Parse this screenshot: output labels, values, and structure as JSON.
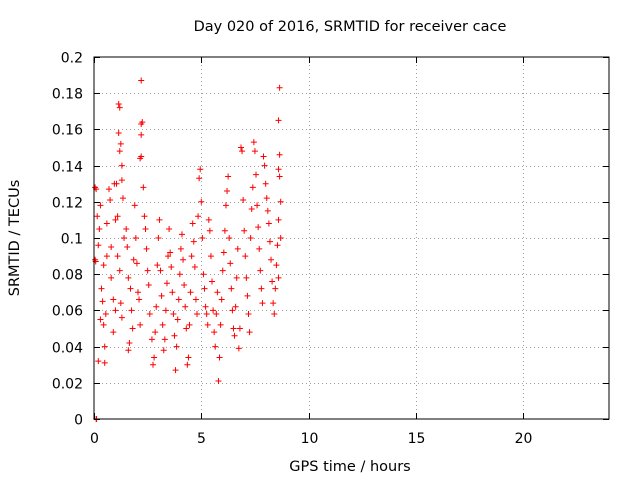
{
  "chart_data": {
    "type": "scatter",
    "title": "Day 020 of 2016, SRMTID for receiver cace",
    "xlabel": "GPS time / hours",
    "ylabel": "SRMTID / TECUs",
    "xlim": [
      0,
      24
    ],
    "ylim": [
      0,
      0.2
    ],
    "xticks": [
      0,
      5,
      10,
      15,
      20
    ],
    "xtick_labels": [
      "0",
      "5",
      "10",
      "15",
      "20"
    ],
    "yticks": [
      0,
      0.02,
      0.04,
      0.06,
      0.08,
      0.1,
      0.12,
      0.14,
      0.16,
      0.18,
      0.2
    ],
    "ytick_labels": [
      "0",
      "0.02",
      "0.04",
      "0.06",
      "0.08",
      "0.1",
      "0.12",
      "0.14",
      "0.16",
      "0.18",
      "0.2"
    ],
    "grid": true,
    "marker": "+",
    "series": [
      {
        "name": "SRMTID",
        "color": "#ff0000",
        "points": [
          [
            0.05,
            0.128
          ],
          [
            0.1,
            0.127
          ],
          [
            0.1,
            0.0
          ],
          [
            0.12,
            0.0
          ],
          [
            0.08,
            0.087
          ],
          [
            0.05,
            0.088
          ],
          [
            0.15,
            0.112
          ],
          [
            0.2,
            0.096
          ],
          [
            0.25,
            0.105
          ],
          [
            0.3,
            0.118
          ],
          [
            0.35,
            0.072
          ],
          [
            0.3,
            0.055
          ],
          [
            0.2,
            0.032
          ],
          [
            0.4,
            0.065
          ],
          [
            0.45,
            0.052
          ],
          [
            0.5,
            0.04
          ],
          [
            0.5,
            0.031
          ],
          [
            0.55,
            0.058
          ],
          [
            0.45,
            0.085
          ],
          [
            0.6,
            0.09
          ],
          [
            0.6,
            0.108
          ],
          [
            0.7,
            0.127
          ],
          [
            0.75,
            0.121
          ],
          [
            0.8,
            0.095
          ],
          [
            0.8,
            0.078
          ],
          [
            0.9,
            0.066
          ],
          [
            0.95,
            0.13
          ],
          [
            1.0,
            0.11
          ],
          [
            1.05,
            0.13
          ],
          [
            1.1,
            0.112
          ],
          [
            1.15,
            0.174
          ],
          [
            1.2,
            0.172
          ],
          [
            1.15,
            0.158
          ],
          [
            1.25,
            0.152
          ],
          [
            1.2,
            0.148
          ],
          [
            1.3,
            0.14
          ],
          [
            1.3,
            0.132
          ],
          [
            1.35,
            0.122
          ],
          [
            1.1,
            0.09
          ],
          [
            1.2,
            0.082
          ],
          [
            1.25,
            0.064
          ],
          [
            1.3,
            0.056
          ],
          [
            1.0,
            0.06
          ],
          [
            0.9,
            0.048
          ],
          [
            1.4,
            0.1
          ],
          [
            1.5,
            0.105
          ],
          [
            1.55,
            0.095
          ],
          [
            1.6,
            0.078
          ],
          [
            1.7,
            0.072
          ],
          [
            1.75,
            0.06
          ],
          [
            1.8,
            0.05
          ],
          [
            1.6,
            0.038
          ],
          [
            1.65,
            0.042
          ],
          [
            1.85,
            0.088
          ],
          [
            1.9,
            0.118
          ],
          [
            1.95,
            0.1
          ],
          [
            2.0,
            0.086
          ],
          [
            2.05,
            0.07
          ],
          [
            2.1,
            0.066
          ],
          [
            2.15,
            0.052
          ],
          [
            2.15,
            0.144
          ],
          [
            2.2,
            0.145
          ],
          [
            2.2,
            0.163
          ],
          [
            2.25,
            0.164
          ],
          [
            2.2,
            0.157
          ],
          [
            2.2,
            0.187
          ],
          [
            2.3,
            0.128
          ],
          [
            2.35,
            0.112
          ],
          [
            2.4,
            0.105
          ],
          [
            2.45,
            0.094
          ],
          [
            2.5,
            0.082
          ],
          [
            2.55,
            0.074
          ],
          [
            2.6,
            0.058
          ],
          [
            2.7,
            0.044
          ],
          [
            2.75,
            0.03
          ],
          [
            2.8,
            0.034
          ],
          [
            2.85,
            0.048
          ],
          [
            2.9,
            0.062
          ],
          [
            2.95,
            0.085
          ],
          [
            3.0,
            0.1
          ],
          [
            3.05,
            0.11
          ],
          [
            3.1,
            0.082
          ],
          [
            3.15,
            0.068
          ],
          [
            3.2,
            0.052
          ],
          [
            3.25,
            0.038
          ],
          [
            3.3,
            0.044
          ],
          [
            3.35,
            0.06
          ],
          [
            3.4,
            0.075
          ],
          [
            3.45,
            0.09
          ],
          [
            3.5,
            0.105
          ],
          [
            3.55,
            0.092
          ],
          [
            3.6,
            0.084
          ],
          [
            3.65,
            0.07
          ],
          [
            3.7,
            0.058
          ],
          [
            3.75,
            0.046
          ],
          [
            3.8,
            0.027
          ],
          [
            3.85,
            0.04
          ],
          [
            3.9,
            0.055
          ],
          [
            3.95,
            0.066
          ],
          [
            4.0,
            0.08
          ],
          [
            4.05,
            0.094
          ],
          [
            4.1,
            0.102
          ],
          [
            4.15,
            0.088
          ],
          [
            4.2,
            0.074
          ],
          [
            4.25,
            0.062
          ],
          [
            4.3,
            0.05
          ],
          [
            4.35,
            0.03
          ],
          [
            4.4,
            0.034
          ],
          [
            4.45,
            0.052
          ],
          [
            4.5,
            0.07
          ],
          [
            4.55,
            0.09
          ],
          [
            4.6,
            0.108
          ],
          [
            4.65,
            0.098
          ],
          [
            4.7,
            0.084
          ],
          [
            4.75,
            0.066
          ],
          [
            4.8,
            0.058
          ],
          [
            4.85,
            0.112
          ],
          [
            4.9,
            0.133
          ],
          [
            4.95,
            0.138
          ],
          [
            5.0,
            0.12
          ],
          [
            5.05,
            0.1
          ],
          [
            5.1,
            0.08
          ],
          [
            5.15,
            0.072
          ],
          [
            5.2,
            0.062
          ],
          [
            5.25,
            0.058
          ],
          [
            5.3,
            0.052
          ],
          [
            5.35,
            0.11
          ],
          [
            5.4,
            0.104
          ],
          [
            5.45,
            0.09
          ],
          [
            5.5,
            0.076
          ],
          [
            5.55,
            0.06
          ],
          [
            5.6,
            0.048
          ],
          [
            5.65,
            0.04
          ],
          [
            5.7,
            0.058
          ],
          [
            5.75,
            0.07
          ],
          [
            5.8,
            0.021
          ],
          [
            5.85,
            0.034
          ],
          [
            5.9,
            0.052
          ],
          [
            5.95,
            0.066
          ],
          [
            6.0,
            0.082
          ],
          [
            6.05,
            0.092
          ],
          [
            6.1,
            0.104
          ],
          [
            6.15,
            0.118
          ],
          [
            6.2,
            0.126
          ],
          [
            6.25,
            0.134
          ],
          [
            6.3,
            0.1
          ],
          [
            6.35,
            0.086
          ],
          [
            6.4,
            0.072
          ],
          [
            6.45,
            0.06
          ],
          [
            6.5,
            0.05
          ],
          [
            6.55,
            0.046
          ],
          [
            6.6,
            0.062
          ],
          [
            6.65,
            0.078
          ],
          [
            6.7,
            0.094
          ],
          [
            6.75,
            0.039
          ],
          [
            6.8,
            0.05
          ],
          [
            6.85,
            0.15
          ],
          [
            6.9,
            0.148
          ],
          [
            6.95,
            0.121
          ],
          [
            7.0,
            0.104
          ],
          [
            7.05,
            0.09
          ],
          [
            7.1,
            0.078
          ],
          [
            7.15,
            0.068
          ],
          [
            7.2,
            0.058
          ],
          [
            7.25,
            0.048
          ],
          [
            7.3,
            0.1
          ],
          [
            7.35,
            0.116
          ],
          [
            7.4,
            0.128
          ],
          [
            7.45,
            0.153
          ],
          [
            7.5,
            0.148
          ],
          [
            7.55,
            0.135
          ],
          [
            7.6,
            0.118
          ],
          [
            7.65,
            0.106
          ],
          [
            7.7,
            0.094
          ],
          [
            7.75,
            0.082
          ],
          [
            7.8,
            0.072
          ],
          [
            7.85,
            0.064
          ],
          [
            7.9,
            0.145
          ],
          [
            7.95,
            0.14
          ],
          [
            8.0,
            0.13
          ],
          [
            8.05,
            0.122
          ],
          [
            8.1,
            0.115
          ],
          [
            8.15,
            0.108
          ],
          [
            8.2,
            0.098
          ],
          [
            8.25,
            0.088
          ],
          [
            8.3,
            0.076
          ],
          [
            8.35,
            0.064
          ],
          [
            8.4,
            0.058
          ],
          [
            8.45,
            0.072
          ],
          [
            8.5,
            0.085
          ],
          [
            8.55,
            0.096
          ],
          [
            8.6,
            0.078
          ],
          [
            8.65,
            0.183
          ],
          [
            8.6,
            0.165
          ],
          [
            8.65,
            0.146
          ],
          [
            8.6,
            0.138
          ],
          [
            8.65,
            0.134
          ],
          [
            8.7,
            0.12
          ],
          [
            8.6,
            0.11
          ],
          [
            8.7,
            0.1
          ]
        ]
      }
    ]
  }
}
